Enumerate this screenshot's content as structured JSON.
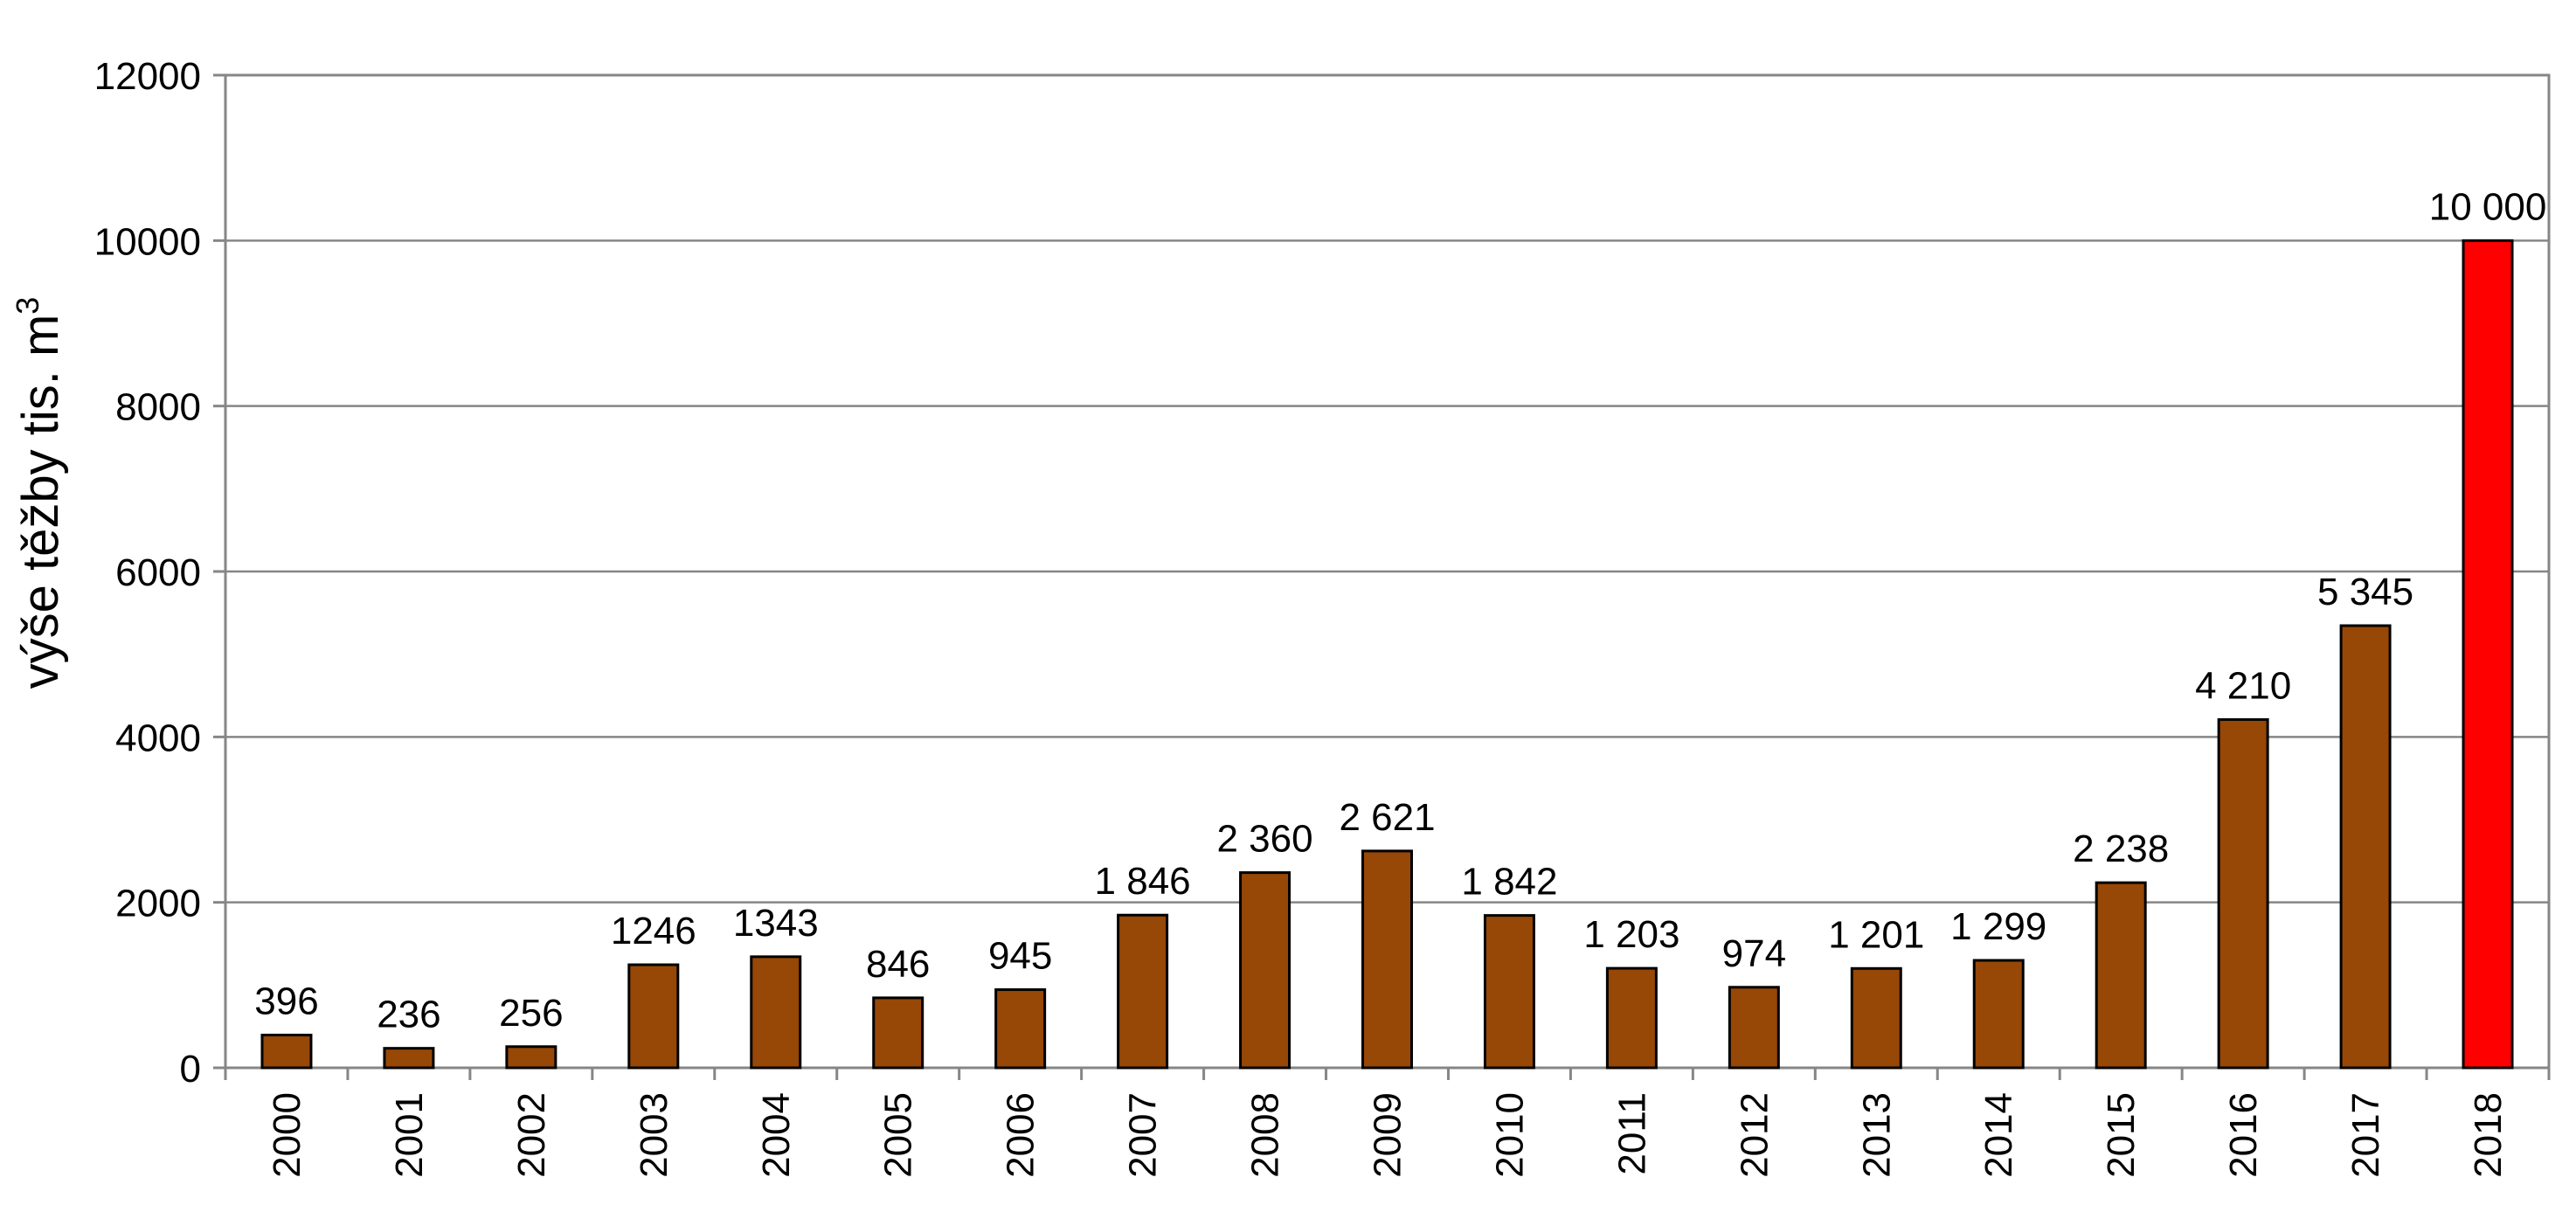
{
  "chart_data": {
    "type": "bar",
    "title": "",
    "xlabel": "",
    "ylabel": "výše těžby tis. m",
    "ylabel_superscript": "3",
    "categories": [
      "2000",
      "2001",
      "2002",
      "2003",
      "2004",
      "2005",
      "2006",
      "2007",
      "2008",
      "2009",
      "2010",
      "2011",
      "2012",
      "2013",
      "2014",
      "2015",
      "2016",
      "2017",
      "2018"
    ],
    "values": [
      396,
      236,
      256,
      1246,
      1343,
      846,
      945,
      1846,
      2360,
      2621,
      1842,
      1203,
      974,
      1201,
      1299,
      2238,
      4210,
      5345,
      10000
    ],
    "data_labels": [
      "396",
      "236",
      "256",
      "1246",
      "1343",
      "846",
      "945",
      "1 846",
      "2 360",
      "2 621",
      "1 842",
      "1 203",
      "974",
      "1 201",
      "1 299",
      "2 238",
      "4 210",
      "5 345",
      "10 000"
    ],
    "ylim": [
      0,
      12000
    ],
    "yticks": [
      0,
      2000,
      4000,
      6000,
      8000,
      10000,
      12000
    ],
    "ytick_labels": [
      "0",
      "2000",
      "4000",
      "6000",
      "8000",
      "10000",
      "12000"
    ],
    "grid": "horizontal",
    "legend": "none",
    "colors": {
      "bar": "#974706",
      "highlight_bar": "#ff0000",
      "highlight_category": "2018",
      "grid": "#868686",
      "axis": "#868686",
      "bar_edge": "#000000"
    }
  }
}
